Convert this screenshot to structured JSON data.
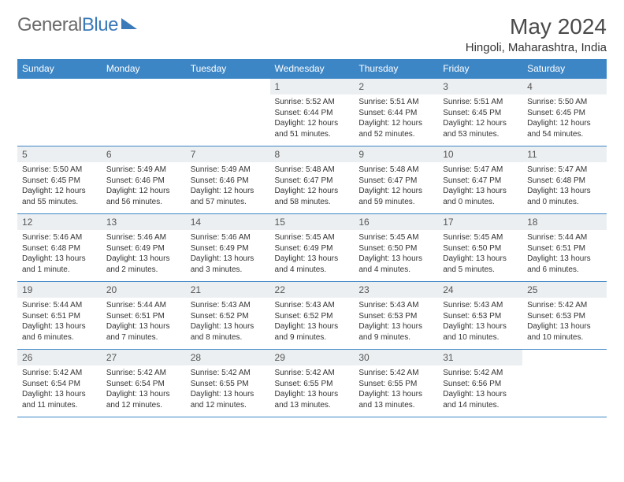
{
  "brand": {
    "part1": "General",
    "part2": "Blue"
  },
  "title": "May 2024",
  "location": "Hingoli, Maharashtra, India",
  "colors": {
    "header_bg": "#3d86c6",
    "header_fg": "#ffffff",
    "daynum_bg": "#eceff1",
    "border": "#3d86c6",
    "title_color": "#4a4a4a",
    "body_text": "#333333"
  },
  "fonts": {
    "title_size_pt": 21,
    "location_size_pt": 11,
    "th_size_pt": 9,
    "daynum_size_pt": 9,
    "body_size_pt": 7.5
  },
  "day_headers": [
    "Sunday",
    "Monday",
    "Tuesday",
    "Wednesday",
    "Thursday",
    "Friday",
    "Saturday"
  ],
  "weeks": [
    [
      {
        "blank": true
      },
      {
        "blank": true
      },
      {
        "blank": true
      },
      {
        "n": "1",
        "sunrise": "5:52 AM",
        "sunset": "6:44 PM",
        "dl": "12 hours and 51 minutes."
      },
      {
        "n": "2",
        "sunrise": "5:51 AM",
        "sunset": "6:44 PM",
        "dl": "12 hours and 52 minutes."
      },
      {
        "n": "3",
        "sunrise": "5:51 AM",
        "sunset": "6:45 PM",
        "dl": "12 hours and 53 minutes."
      },
      {
        "n": "4",
        "sunrise": "5:50 AM",
        "sunset": "6:45 PM",
        "dl": "12 hours and 54 minutes."
      }
    ],
    [
      {
        "n": "5",
        "sunrise": "5:50 AM",
        "sunset": "6:45 PM",
        "dl": "12 hours and 55 minutes."
      },
      {
        "n": "6",
        "sunrise": "5:49 AM",
        "sunset": "6:46 PM",
        "dl": "12 hours and 56 minutes."
      },
      {
        "n": "7",
        "sunrise": "5:49 AM",
        "sunset": "6:46 PM",
        "dl": "12 hours and 57 minutes."
      },
      {
        "n": "8",
        "sunrise": "5:48 AM",
        "sunset": "6:47 PM",
        "dl": "12 hours and 58 minutes."
      },
      {
        "n": "9",
        "sunrise": "5:48 AM",
        "sunset": "6:47 PM",
        "dl": "12 hours and 59 minutes."
      },
      {
        "n": "10",
        "sunrise": "5:47 AM",
        "sunset": "6:47 PM",
        "dl": "13 hours and 0 minutes."
      },
      {
        "n": "11",
        "sunrise": "5:47 AM",
        "sunset": "6:48 PM",
        "dl": "13 hours and 0 minutes."
      }
    ],
    [
      {
        "n": "12",
        "sunrise": "5:46 AM",
        "sunset": "6:48 PM",
        "dl": "13 hours and 1 minute."
      },
      {
        "n": "13",
        "sunrise": "5:46 AM",
        "sunset": "6:49 PM",
        "dl": "13 hours and 2 minutes."
      },
      {
        "n": "14",
        "sunrise": "5:46 AM",
        "sunset": "6:49 PM",
        "dl": "13 hours and 3 minutes."
      },
      {
        "n": "15",
        "sunrise": "5:45 AM",
        "sunset": "6:49 PM",
        "dl": "13 hours and 4 minutes."
      },
      {
        "n": "16",
        "sunrise": "5:45 AM",
        "sunset": "6:50 PM",
        "dl": "13 hours and 4 minutes."
      },
      {
        "n": "17",
        "sunrise": "5:45 AM",
        "sunset": "6:50 PM",
        "dl": "13 hours and 5 minutes."
      },
      {
        "n": "18",
        "sunrise": "5:44 AM",
        "sunset": "6:51 PM",
        "dl": "13 hours and 6 minutes."
      }
    ],
    [
      {
        "n": "19",
        "sunrise": "5:44 AM",
        "sunset": "6:51 PM",
        "dl": "13 hours and 6 minutes."
      },
      {
        "n": "20",
        "sunrise": "5:44 AM",
        "sunset": "6:51 PM",
        "dl": "13 hours and 7 minutes."
      },
      {
        "n": "21",
        "sunrise": "5:43 AM",
        "sunset": "6:52 PM",
        "dl": "13 hours and 8 minutes."
      },
      {
        "n": "22",
        "sunrise": "5:43 AM",
        "sunset": "6:52 PM",
        "dl": "13 hours and 9 minutes."
      },
      {
        "n": "23",
        "sunrise": "5:43 AM",
        "sunset": "6:53 PM",
        "dl": "13 hours and 9 minutes."
      },
      {
        "n": "24",
        "sunrise": "5:43 AM",
        "sunset": "6:53 PM",
        "dl": "13 hours and 10 minutes."
      },
      {
        "n": "25",
        "sunrise": "5:42 AM",
        "sunset": "6:53 PM",
        "dl": "13 hours and 10 minutes."
      }
    ],
    [
      {
        "n": "26",
        "sunrise": "5:42 AM",
        "sunset": "6:54 PM",
        "dl": "13 hours and 11 minutes."
      },
      {
        "n": "27",
        "sunrise": "5:42 AM",
        "sunset": "6:54 PM",
        "dl": "13 hours and 12 minutes."
      },
      {
        "n": "28",
        "sunrise": "5:42 AM",
        "sunset": "6:55 PM",
        "dl": "13 hours and 12 minutes."
      },
      {
        "n": "29",
        "sunrise": "5:42 AM",
        "sunset": "6:55 PM",
        "dl": "13 hours and 13 minutes."
      },
      {
        "n": "30",
        "sunrise": "5:42 AM",
        "sunset": "6:55 PM",
        "dl": "13 hours and 13 minutes."
      },
      {
        "n": "31",
        "sunrise": "5:42 AM",
        "sunset": "6:56 PM",
        "dl": "13 hours and 14 minutes."
      },
      {
        "blank": true
      }
    ]
  ],
  "labels": {
    "sunrise": "Sunrise:",
    "sunset": "Sunset:",
    "daylight": "Daylight:"
  }
}
